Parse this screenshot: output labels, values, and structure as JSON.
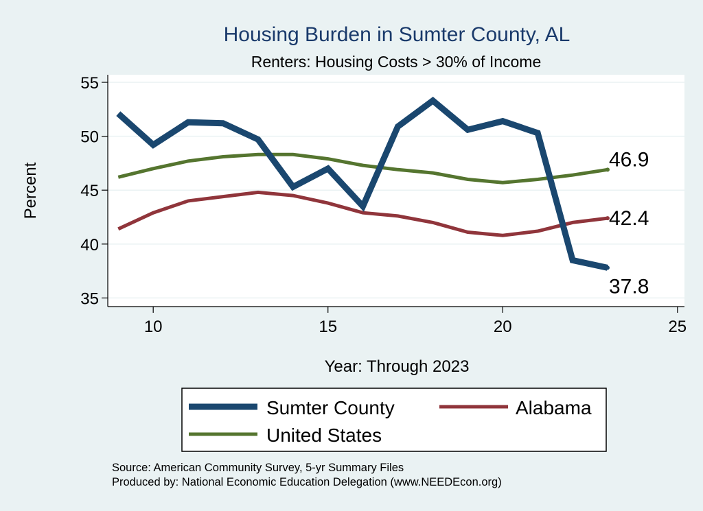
{
  "chart_data": {
    "type": "line",
    "title": "Housing Burden in Sumter County, AL",
    "subtitle": "Renters: Housing Costs > 30% of Income",
    "xlabel": "Year: Through 2023",
    "ylabel": "Percent",
    "xlim": [
      8.7,
      25.2
    ],
    "ylim": [
      34.2,
      55.7
    ],
    "xticks": [
      10,
      15,
      20,
      25
    ],
    "yticks": [
      35,
      40,
      45,
      50,
      55
    ],
    "grid": true,
    "series": [
      {
        "name": "Sumter County",
        "color": "#1a476f",
        "x": [
          9,
          10,
          11,
          12,
          13,
          14,
          15,
          16,
          17,
          18,
          19,
          20,
          21,
          22,
          23
        ],
        "values": [
          52.1,
          49.2,
          51.3,
          51.2,
          49.7,
          45.3,
          47.0,
          43.5,
          50.9,
          53.3,
          50.6,
          51.4,
          50.3,
          38.5,
          37.8
        ],
        "end_label": "37.8"
      },
      {
        "name": "Alabama",
        "color": "#90353b",
        "x": [
          9,
          10,
          11,
          12,
          13,
          14,
          15,
          16,
          17,
          18,
          19,
          20,
          21,
          22,
          23
        ],
        "values": [
          41.4,
          42.9,
          44.0,
          44.4,
          44.8,
          44.5,
          43.8,
          42.9,
          42.6,
          42.0,
          41.1,
          40.8,
          41.2,
          42.0,
          42.4
        ],
        "end_label": "42.4"
      },
      {
        "name": "United States",
        "color": "#55752f",
        "x": [
          9,
          10,
          11,
          12,
          13,
          14,
          15,
          16,
          17,
          18,
          19,
          20,
          21,
          22,
          23
        ],
        "values": [
          46.2,
          47.0,
          47.7,
          48.1,
          48.3,
          48.3,
          47.9,
          47.3,
          46.9,
          46.6,
          46.0,
          45.7,
          46.0,
          46.4,
          46.9
        ],
        "end_label": "46.9"
      }
    ],
    "legend_position": "bottom",
    "source_lines": [
      "Source: American Community Survey, 5-yr Summary Files",
      "Produced by: National Economic Education Delegation (www.NEEDEcon.org)"
    ]
  }
}
